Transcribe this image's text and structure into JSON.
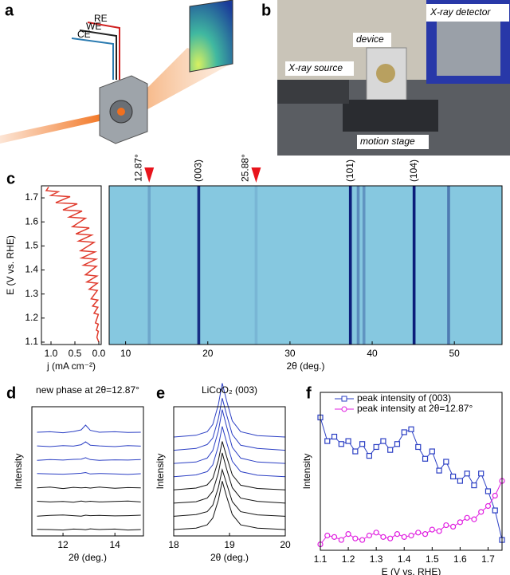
{
  "figure_a": {
    "panel_label": "a",
    "labels": [
      "RE",
      "WE",
      "CE"
    ]
  },
  "figure_b": {
    "panel_label": "b",
    "labels": [
      "X-ray detector",
      "device",
      "X-ray source",
      "motion stage"
    ]
  },
  "chart_data": [
    {
      "type": "line",
      "panel_label": "c",
      "xlabel": "j (mA cm⁻²)",
      "ylabel": "E (V vs. RHE)",
      "color": "#e03a2c",
      "x": [
        0,
        0.04,
        0.01,
        0.05,
        0.01,
        0.07,
        0.01,
        0.1,
        0.02,
        0.13,
        0.02,
        0.16,
        0.03,
        0.2,
        0.03,
        0.25,
        0.04,
        0.28,
        0.05,
        0.32,
        0.06,
        0.36,
        0.08,
        0.38,
        0.1,
        0.42,
        0.15,
        0.48,
        0.2,
        0.55,
        0.28,
        0.62,
        0.35,
        0.75,
        0.45,
        0.9,
        0.6,
        1.0,
        0.85,
        1.1,
        1.05
      ],
      "values": [
        1.1,
        1.12,
        1.145,
        1.15,
        1.175,
        1.18,
        1.215,
        1.22,
        1.245,
        1.25,
        1.275,
        1.28,
        1.315,
        1.32,
        1.345,
        1.35,
        1.375,
        1.38,
        1.415,
        1.42,
        1.445,
        1.45,
        1.475,
        1.48,
        1.515,
        1.52,
        1.545,
        1.55,
        1.575,
        1.58,
        1.615,
        1.62,
        1.645,
        1.65,
        1.675,
        1.68,
        1.705,
        1.71,
        1.725,
        1.73,
        1.745
      ],
      "xlim": [
        1.2,
        -0.05
      ],
      "xticks": [
        {
          "value": 1.0,
          "label": "1.0"
        },
        0.5,
        {
          "value": 0,
          "label": "0.0"
        }
      ],
      "ylim": [
        1.09,
        1.75
      ],
      "yticks": [
        1.1,
        1.2,
        1.3,
        1.4,
        1.5,
        1.6,
        1.7
      ]
    },
    {
      "type": "heatmap",
      "xlabel": "2θ (deg.)",
      "background": "#86c8e0",
      "peak_color": "#0b1d7a",
      "peaks_x": [
        12.87,
        18.9,
        25.88,
        37.35,
        38.3,
        39.0,
        45.1,
        49.3
      ],
      "peaks_intensity": [
        0.2,
        0.9,
        0.1,
        1,
        0.35,
        0.3,
        1,
        0.45
      ],
      "xlim": [
        8,
        55.8
      ],
      "xticks": [
        10,
        20,
        30,
        40,
        50
      ],
      "annotations": [
        {
          "text": "12.87°",
          "x": 12.87,
          "color": "#e8141c",
          "arrow": true
        },
        {
          "text": "(003)",
          "x": 18.9,
          "color": "#000000",
          "arrow": false
        },
        {
          "text": "25.88°",
          "x": 25.88,
          "color": "#e8141c",
          "arrow": true
        },
        {
          "text": "(101)",
          "x": 37.35,
          "color": "#000000",
          "arrow": false
        },
        {
          "text": "(104)",
          "x": 45.1,
          "color": "#000000",
          "arrow": false
        }
      ]
    },
    {
      "type": "waterfall",
      "panel_label": "d",
      "title": "new phase at 2θ=12.87°",
      "xlabel": "2θ (deg.)",
      "ylabel": "Intensity",
      "x": [
        11,
        11.5,
        12,
        12.4,
        12.7,
        12.87,
        13.05,
        13.4,
        14,
        14.5,
        15
      ],
      "xlim": [
        10.8,
        15.1
      ],
      "xticks": [
        12,
        14
      ],
      "series": [
        {
          "color": "#2b3fc4",
          "values": [
            1.0,
            1.02,
            0.98,
            1.03,
            1.1,
            1.3,
            1.08,
            1.0,
            1.02,
            0.99,
            1.0
          ]
        },
        {
          "color": "#2b3fc4",
          "values": [
            1.01,
            0.98,
            1.02,
            1.0,
            1.06,
            1.18,
            1.04,
            1.01,
            0.98,
            1.02,
            1.0
          ]
        },
        {
          "color": "#2b3fc4",
          "values": [
            0.99,
            1.02,
            1.0,
            1.03,
            1.04,
            1.1,
            1.02,
            0.99,
            1.01,
            1.0,
            1.02
          ]
        },
        {
          "color": "#2b3fc4",
          "values": [
            1.02,
            1.0,
            0.99,
            1.01,
            1.03,
            1.06,
            1.0,
            1.02,
            1.0,
            0.98,
            1.01
          ]
        },
        {
          "color": "#111111",
          "values": [
            1.0,
            1.03,
            0.97,
            1.02,
            1.0,
            1.01,
            0.99,
            1.03,
            0.98,
            1.01,
            1.0
          ]
        },
        {
          "color": "#111111",
          "values": [
            1.02,
            0.99,
            1.01,
            0.98,
            1.03,
            1.0,
            1.02,
            0.99,
            1.01,
            1.03,
            0.99
          ]
        },
        {
          "color": "#111111",
          "values": [
            0.98,
            1.01,
            1.03,
            1.0,
            0.98,
            1.02,
            1.0,
            1.01,
            0.99,
            1.0,
            1.02
          ]
        },
        {
          "color": "#111111",
          "values": [
            1.01,
            1.0,
            0.98,
            1.02,
            1.01,
            0.99,
            1.03,
            1.0,
            1.02,
            0.98,
            1.0
          ]
        }
      ]
    },
    {
      "type": "waterfall",
      "panel_label": "e",
      "title": "LiCoO₂ (003)",
      "xlabel": "2θ (deg.)",
      "ylabel": "Intensity",
      "x": [
        18,
        18.4,
        18.6,
        18.7,
        18.8,
        18.87,
        18.95,
        19.05,
        19.2,
        19.5,
        20
      ],
      "xlim": [
        18,
        20
      ],
      "xticks": [
        18,
        19,
        20
      ],
      "series": [
        {
          "color": "#2b3fc4",
          "values": [
            1.0,
            1.05,
            1.15,
            1.35,
            1.9,
            2.5,
            2.0,
            1.45,
            1.15,
            1.04,
            1.0
          ]
        },
        {
          "color": "#2b3fc4",
          "values": [
            1.0,
            1.05,
            1.16,
            1.34,
            1.88,
            2.45,
            1.98,
            1.44,
            1.14,
            1.05,
            1.0
          ]
        },
        {
          "color": "#2b3fc4",
          "values": [
            1.0,
            1.04,
            1.15,
            1.36,
            1.9,
            2.5,
            2.02,
            1.45,
            1.15,
            1.04,
            1.0
          ]
        },
        {
          "color": "#2b3fc4",
          "values": [
            1.0,
            1.05,
            1.14,
            1.33,
            1.85,
            2.4,
            1.95,
            1.43,
            1.14,
            1.04,
            1.0
          ]
        },
        {
          "color": "#111111",
          "values": [
            1.0,
            1.05,
            1.14,
            1.32,
            1.82,
            2.35,
            1.92,
            1.42,
            1.13,
            1.04,
            1.0
          ]
        },
        {
          "color": "#111111",
          "values": [
            1.0,
            1.04,
            1.14,
            1.33,
            1.84,
            2.4,
            1.94,
            1.43,
            1.14,
            1.05,
            1.0
          ]
        },
        {
          "color": "#111111",
          "values": [
            1.0,
            1.05,
            1.13,
            1.31,
            1.8,
            2.3,
            1.9,
            1.41,
            1.13,
            1.04,
            1.0
          ]
        },
        {
          "color": "#111111",
          "values": [
            1.0,
            1.04,
            1.13,
            1.32,
            1.82,
            2.35,
            1.91,
            1.42,
            1.13,
            1.04,
            1.0
          ]
        }
      ]
    },
    {
      "type": "line",
      "panel_label": "f",
      "xlabel": "E (V vs. RHE)",
      "ylabel": "Intensity",
      "x": [
        1.1,
        1.125,
        1.15,
        1.175,
        1.2,
        1.225,
        1.25,
        1.275,
        1.3,
        1.325,
        1.35,
        1.375,
        1.4,
        1.425,
        1.45,
        1.475,
        1.5,
        1.525,
        1.55,
        1.575,
        1.6,
        1.625,
        1.65,
        1.675,
        1.7,
        1.725,
        1.75
      ],
      "xlim": [
        1.1,
        1.75
      ],
      "xticks": [
        1.1,
        1.2,
        1.3,
        1.4,
        1.5,
        1.6,
        1.7
      ],
      "ylim": [
        -0.02,
        1.05
      ],
      "series": [
        {
          "name": "peak intensity of (003)",
          "color": "#2b3fc4",
          "marker": "square",
          "values": [
            0.88,
            0.72,
            0.75,
            0.7,
            0.72,
            0.65,
            0.7,
            0.62,
            0.68,
            0.72,
            0.66,
            0.7,
            0.78,
            0.8,
            0.68,
            0.6,
            0.65,
            0.52,
            0.58,
            0.48,
            0.45,
            0.5,
            0.42,
            0.5,
            0.38,
            0.25,
            0.05
          ]
        },
        {
          "name": "peak intensity at 2θ=12.87°",
          "color": "#e020e0",
          "marker": "circle",
          "values": [
            0.02,
            0.08,
            0.07,
            0.05,
            0.09,
            0.06,
            0.05,
            0.08,
            0.1,
            0.07,
            0.06,
            0.09,
            0.07,
            0.08,
            0.1,
            0.09,
            0.12,
            0.11,
            0.15,
            0.14,
            0.17,
            0.2,
            0.19,
            0.24,
            0.28,
            0.35,
            0.45
          ]
        }
      ]
    }
  ]
}
